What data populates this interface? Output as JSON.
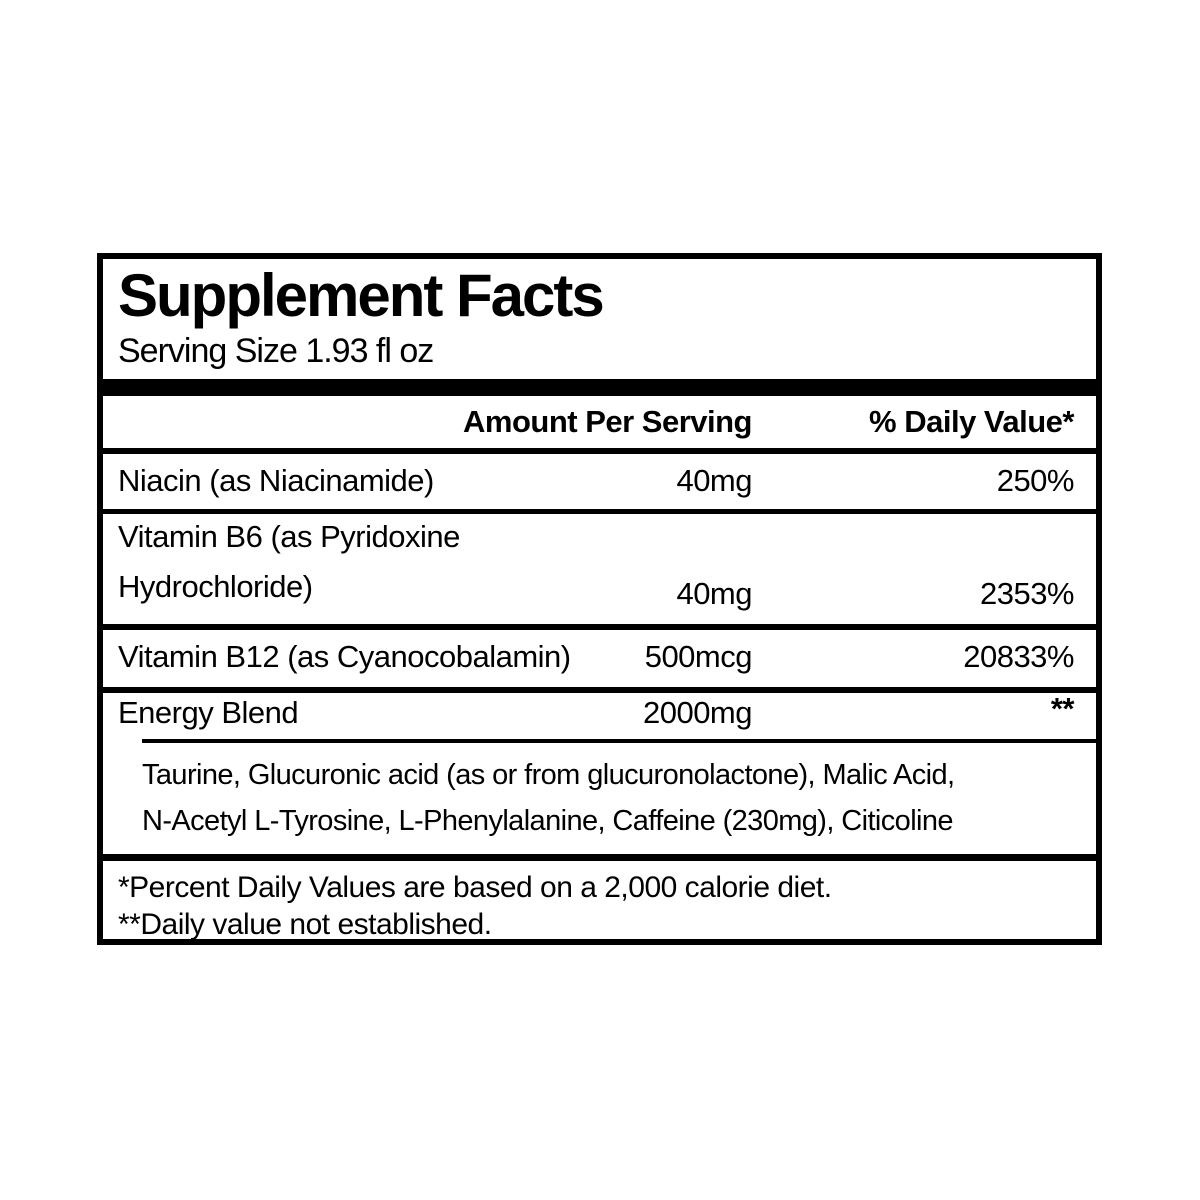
{
  "label": {
    "title": "Supplement Facts",
    "serving_size": "Serving Size 1.93 fl oz",
    "header": {
      "amount": "Amount Per Serving",
      "daily_value": "% Daily Value*"
    },
    "rows": [
      {
        "name": "Niacin (as Niacinamide)",
        "amount": "40mg",
        "dv": "250%"
      },
      {
        "name_line1": "Vitamin B6 (as Pyridoxine",
        "name_line2": "Hydrochloride)",
        "amount": "40mg",
        "dv": "2353%"
      },
      {
        "name": "Vitamin B12 (as Cyanocobalamin)",
        "amount": "500mcg",
        "dv": "20833%"
      },
      {
        "name": "Energy Blend",
        "amount": "2000mg",
        "dv": "**"
      }
    ],
    "blend_description": {
      "line1": "Taurine, Glucuronic acid (as or from glucuronolactone), Malic Acid,",
      "line2": "N-Acetyl L-Tyrosine, L-Phenylalanine, Caffeine (230mg), Citicoline"
    },
    "footnotes": {
      "line1": "*Percent Daily Values are based on a 2,000 calorie diet.",
      "line2": "**Daily value not established."
    },
    "colors": {
      "text": "#000000",
      "background": "#ffffff",
      "border": "#000000"
    }
  }
}
